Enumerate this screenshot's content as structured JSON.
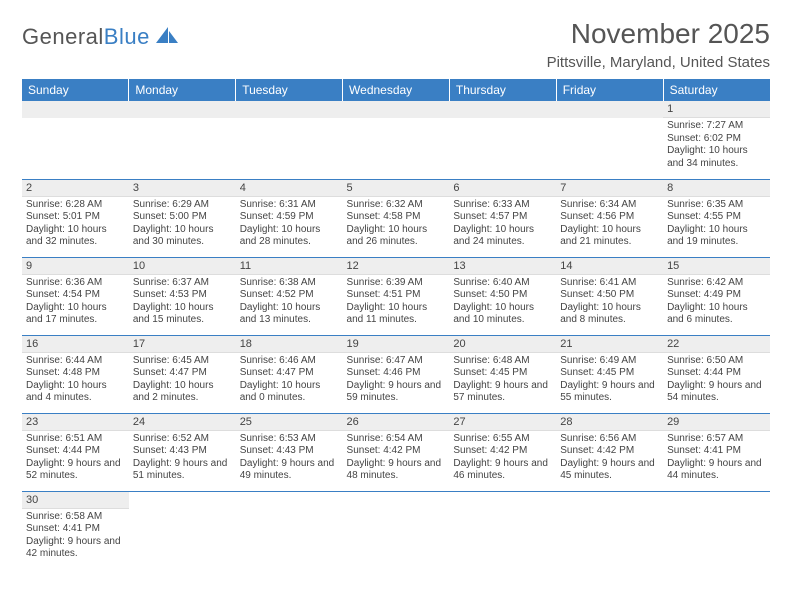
{
  "logo": {
    "text1": "General",
    "text2": "Blue"
  },
  "title": "November 2025",
  "location": "Pittsville, Maryland, United States",
  "header_color": "#3a7fc4",
  "header_text_color": "#ffffff",
  "daynum_bg": "#eeeeee",
  "grid_line_color": "#3a7fc4",
  "days_of_week": [
    "Sunday",
    "Monday",
    "Tuesday",
    "Wednesday",
    "Thursday",
    "Friday",
    "Saturday"
  ],
  "weeks": [
    [
      null,
      null,
      null,
      null,
      null,
      null,
      {
        "n": "1",
        "sunrise": "7:27 AM",
        "sunset": "6:02 PM",
        "dl": "10 hours and 34 minutes."
      }
    ],
    [
      {
        "n": "2",
        "sunrise": "6:28 AM",
        "sunset": "5:01 PM",
        "dl": "10 hours and 32 minutes."
      },
      {
        "n": "3",
        "sunrise": "6:29 AM",
        "sunset": "5:00 PM",
        "dl": "10 hours and 30 minutes."
      },
      {
        "n": "4",
        "sunrise": "6:31 AM",
        "sunset": "4:59 PM",
        "dl": "10 hours and 28 minutes."
      },
      {
        "n": "5",
        "sunrise": "6:32 AM",
        "sunset": "4:58 PM",
        "dl": "10 hours and 26 minutes."
      },
      {
        "n": "6",
        "sunrise": "6:33 AM",
        "sunset": "4:57 PM",
        "dl": "10 hours and 24 minutes."
      },
      {
        "n": "7",
        "sunrise": "6:34 AM",
        "sunset": "4:56 PM",
        "dl": "10 hours and 21 minutes."
      },
      {
        "n": "8",
        "sunrise": "6:35 AM",
        "sunset": "4:55 PM",
        "dl": "10 hours and 19 minutes."
      }
    ],
    [
      {
        "n": "9",
        "sunrise": "6:36 AM",
        "sunset": "4:54 PM",
        "dl": "10 hours and 17 minutes."
      },
      {
        "n": "10",
        "sunrise": "6:37 AM",
        "sunset": "4:53 PM",
        "dl": "10 hours and 15 minutes."
      },
      {
        "n": "11",
        "sunrise": "6:38 AM",
        "sunset": "4:52 PM",
        "dl": "10 hours and 13 minutes."
      },
      {
        "n": "12",
        "sunrise": "6:39 AM",
        "sunset": "4:51 PM",
        "dl": "10 hours and 11 minutes."
      },
      {
        "n": "13",
        "sunrise": "6:40 AM",
        "sunset": "4:50 PM",
        "dl": "10 hours and 10 minutes."
      },
      {
        "n": "14",
        "sunrise": "6:41 AM",
        "sunset": "4:50 PM",
        "dl": "10 hours and 8 minutes."
      },
      {
        "n": "15",
        "sunrise": "6:42 AM",
        "sunset": "4:49 PM",
        "dl": "10 hours and 6 minutes."
      }
    ],
    [
      {
        "n": "16",
        "sunrise": "6:44 AM",
        "sunset": "4:48 PM",
        "dl": "10 hours and 4 minutes."
      },
      {
        "n": "17",
        "sunrise": "6:45 AM",
        "sunset": "4:47 PM",
        "dl": "10 hours and 2 minutes."
      },
      {
        "n": "18",
        "sunrise": "6:46 AM",
        "sunset": "4:47 PM",
        "dl": "10 hours and 0 minutes."
      },
      {
        "n": "19",
        "sunrise": "6:47 AM",
        "sunset": "4:46 PM",
        "dl": "9 hours and 59 minutes."
      },
      {
        "n": "20",
        "sunrise": "6:48 AM",
        "sunset": "4:45 PM",
        "dl": "9 hours and 57 minutes."
      },
      {
        "n": "21",
        "sunrise": "6:49 AM",
        "sunset": "4:45 PM",
        "dl": "9 hours and 55 minutes."
      },
      {
        "n": "22",
        "sunrise": "6:50 AM",
        "sunset": "4:44 PM",
        "dl": "9 hours and 54 minutes."
      }
    ],
    [
      {
        "n": "23",
        "sunrise": "6:51 AM",
        "sunset": "4:44 PM",
        "dl": "9 hours and 52 minutes."
      },
      {
        "n": "24",
        "sunrise": "6:52 AM",
        "sunset": "4:43 PM",
        "dl": "9 hours and 51 minutes."
      },
      {
        "n": "25",
        "sunrise": "6:53 AM",
        "sunset": "4:43 PM",
        "dl": "9 hours and 49 minutes."
      },
      {
        "n": "26",
        "sunrise": "6:54 AM",
        "sunset": "4:42 PM",
        "dl": "9 hours and 48 minutes."
      },
      {
        "n": "27",
        "sunrise": "6:55 AM",
        "sunset": "4:42 PM",
        "dl": "9 hours and 46 minutes."
      },
      {
        "n": "28",
        "sunrise": "6:56 AM",
        "sunset": "4:42 PM",
        "dl": "9 hours and 45 minutes."
      },
      {
        "n": "29",
        "sunrise": "6:57 AM",
        "sunset": "4:41 PM",
        "dl": "9 hours and 44 minutes."
      }
    ],
    [
      {
        "n": "30",
        "sunrise": "6:58 AM",
        "sunset": "4:41 PM",
        "dl": "9 hours and 42 minutes."
      },
      null,
      null,
      null,
      null,
      null,
      null
    ]
  ],
  "labels": {
    "sunrise": "Sunrise:",
    "sunset": "Sunset:",
    "daylight": "Daylight:"
  }
}
